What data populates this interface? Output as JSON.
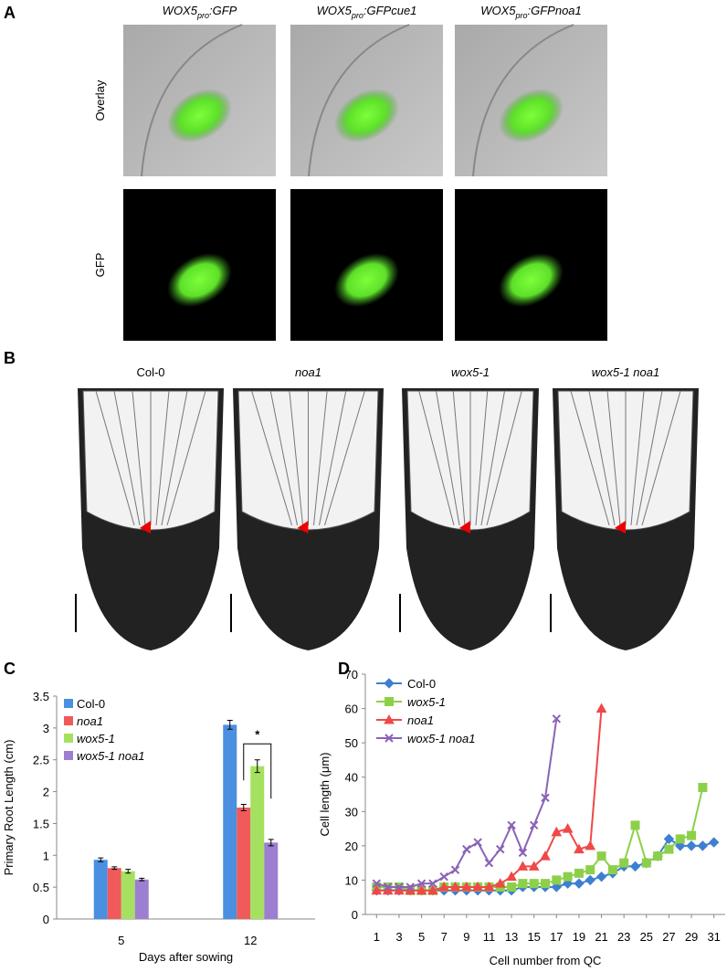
{
  "panel_a": {
    "label": "A",
    "columns": [
      {
        "prefix": "WOX5",
        "sub": "pro",
        "suffix": ":GFP"
      },
      {
        "prefix": "WOX5",
        "sub": "pro",
        "suffix": ":GFPcue1"
      },
      {
        "prefix": "WOX5",
        "sub": "pro",
        "suffix": ":GFPnoa1"
      }
    ],
    "rows": [
      "Overlay",
      "GFP"
    ]
  },
  "panel_b": {
    "label": "B",
    "columns": [
      "Col-0",
      "noa1",
      "wox5-1",
      "wox5-1 noa1"
    ],
    "italic": [
      false,
      true,
      true,
      true
    ]
  },
  "chart_data": [
    {
      "type": "bar",
      "panel": "C",
      "ylabel": "Primary Root Length (cm)",
      "xlabel": "Days after sowing",
      "categories": [
        "5",
        "12"
      ],
      "ylim": [
        0,
        3.5
      ],
      "yticks": [
        0,
        0.5,
        1,
        1.5,
        2,
        2.5,
        3,
        3.5
      ],
      "annotation": "*",
      "series": [
        {
          "name": "Col-0",
          "color": "#4a8fe0",
          "italic": false,
          "values": [
            0.93,
            3.05
          ],
          "errors": [
            0.03,
            0.07
          ]
        },
        {
          "name": "noa1",
          "color": "#f05a5a",
          "italic": true,
          "values": [
            0.8,
            1.75
          ],
          "errors": [
            0.02,
            0.05
          ]
        },
        {
          "name": "wox5-1",
          "color": "#a6e060",
          "italic": true,
          "values": [
            0.75,
            2.4
          ],
          "errors": [
            0.03,
            0.1
          ]
        },
        {
          "name": "wox5-1 noa1",
          "color": "#9c7fd0",
          "italic": true,
          "values": [
            0.62,
            1.2
          ],
          "errors": [
            0.02,
            0.05
          ]
        }
      ]
    },
    {
      "type": "line",
      "panel": "D",
      "ylabel": "Cell length (μm)",
      "xlabel": "Cell number from QC",
      "x": [
        1,
        2,
        3,
        4,
        5,
        6,
        7,
        8,
        9,
        10,
        11,
        12,
        13,
        14,
        15,
        16,
        17,
        18,
        19,
        20,
        21,
        22,
        23,
        24,
        25,
        26,
        27,
        28,
        29,
        30,
        31
      ],
      "xlim": [
        0,
        32
      ],
      "xticks": [
        1,
        3,
        5,
        7,
        9,
        11,
        13,
        15,
        17,
        19,
        21,
        23,
        25,
        27,
        29,
        31
      ],
      "ylim": [
        0,
        70
      ],
      "yticks": [
        0,
        10,
        20,
        30,
        40,
        50,
        60,
        70
      ],
      "series": [
        {
          "name": "Col-0",
          "color": "#3d7fd0",
          "marker": "diamond",
          "italic": false,
          "values": [
            7,
            7,
            7,
            7,
            7,
            7,
            7,
            7,
            7,
            7,
            7,
            7,
            7,
            8,
            8,
            8,
            8,
            9,
            9,
            10,
            11,
            12,
            14,
            14,
            15,
            17,
            22,
            20,
            20,
            20,
            21
          ]
        },
        {
          "name": "wox5-1",
          "color": "#8cd04a",
          "marker": "square",
          "italic": true,
          "values": [
            8,
            8,
            8,
            7,
            7,
            7,
            8,
            8,
            8,
            8,
            8,
            8,
            8,
            9,
            9,
            9,
            10,
            11,
            12,
            13,
            17,
            13,
            15,
            26,
            15,
            17,
            19,
            22,
            23,
            37,
            null
          ]
        },
        {
          "name": "noa1",
          "color": "#f04848",
          "marker": "triangle",
          "italic": true,
          "values": [
            7,
            7,
            7,
            7,
            7,
            7,
            8,
            8,
            8,
            8,
            8,
            9,
            11,
            14,
            14,
            17,
            24,
            25,
            19,
            20,
            60,
            null,
            null,
            null,
            null,
            null,
            null,
            null,
            null,
            null,
            null
          ]
        },
        {
          "name": "wox5-1 noa1",
          "color": "#8a62b8",
          "marker": "cross",
          "italic": true,
          "values": [
            9,
            8,
            8,
            8,
            9,
            9,
            11,
            13,
            19,
            21,
            15,
            19,
            26,
            18,
            26,
            34,
            57,
            null,
            null,
            null,
            null,
            null,
            null,
            null,
            null,
            null,
            null,
            null,
            null,
            null,
            null
          ]
        }
      ]
    }
  ]
}
